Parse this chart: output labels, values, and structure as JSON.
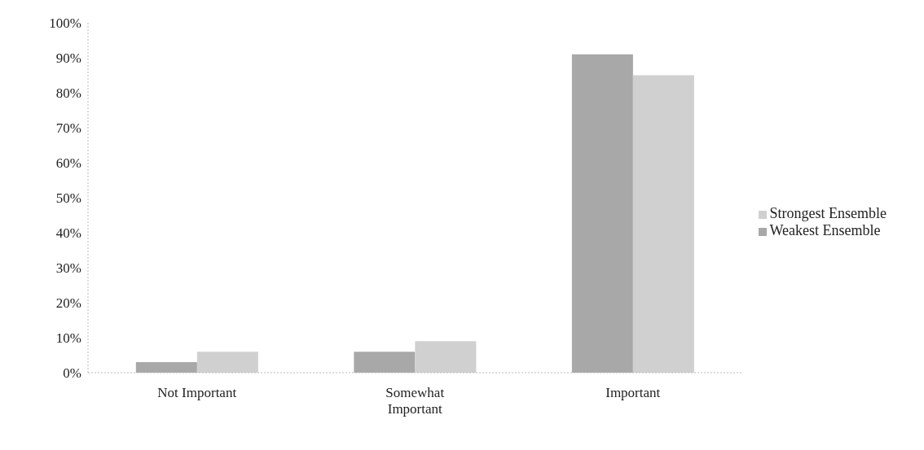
{
  "chart_data": {
    "type": "bar",
    "categories": [
      "Not Important",
      "Somewhat Important",
      "Important"
    ],
    "series": [
      {
        "name": "Weakest Ensemble",
        "color": "#a8a8a8",
        "values": [
          3,
          6,
          91
        ]
      },
      {
        "name": "Strongest Ensemble",
        "color": "#d0d0d0",
        "values": [
          6,
          9,
          85
        ]
      }
    ],
    "ylim": [
      0,
      100
    ],
    "yticks": [
      {
        "value": 0,
        "label": "0%"
      },
      {
        "value": 10,
        "label": "10%"
      },
      {
        "value": 20,
        "label": "20%"
      },
      {
        "value": 30,
        "label": "30%"
      },
      {
        "value": 40,
        "label": "40%"
      },
      {
        "value": 50,
        "label": "50%"
      },
      {
        "value": 60,
        "label": "60%"
      },
      {
        "value": 70,
        "label": "70%"
      },
      {
        "value": 80,
        "label": "80%"
      },
      {
        "value": 90,
        "label": "90%"
      },
      {
        "value": 100,
        "label": "100%"
      }
    ],
    "legend": "right"
  }
}
